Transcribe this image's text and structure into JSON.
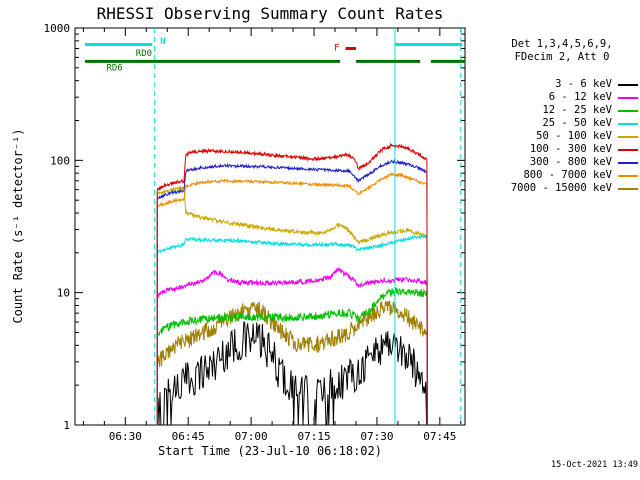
{
  "title": "RHESSI Observing Summary Count Rates",
  "timestamp": "15-Oct-2021 13:49",
  "legend": {
    "header_line1": "Det 1,3,4,5,6,9,",
    "header_line2": "FDecim 2, Att 0",
    "entries": [
      {
        "label": "3 - 6 keV",
        "color": "#000000"
      },
      {
        "label": "6 - 12 keV",
        "color": "#f000f0"
      },
      {
        "label": "12 - 25 keV",
        "color": "#00c000"
      },
      {
        "label": "25 - 50 keV",
        "color": "#00dede"
      },
      {
        "label": "50 - 100 keV",
        "color": "#c8a800"
      },
      {
        "label": "100 - 300 keV",
        "color": "#dc0000"
      },
      {
        "label": "300 - 800 keV",
        "color": "#2020c8"
      },
      {
        "label": "800 - 7000 keV",
        "color": "#f08c00"
      },
      {
        "label": "7000 - 15000 keV",
        "color": "#a08000"
      }
    ]
  },
  "chart_data": {
    "type": "line",
    "title": "RHESSI Observing Summary Count Rates",
    "xlabel": "Start Time (23-Jul-10 06:18:02)",
    "ylabel": "Count Rate (s⁻¹ detector⁻¹)",
    "yscale": "log",
    "ylim": [
      1,
      1000
    ],
    "y_tick_labels": [
      "1",
      "10",
      "100",
      "1000"
    ],
    "t_range": [
      0,
      93
    ],
    "x_major_ticks": [
      {
        "t": 12,
        "label": "06:30"
      },
      {
        "t": 27,
        "label": "06:45"
      },
      {
        "t": 42,
        "label": "07:00"
      },
      {
        "t": 57,
        "label": "07:15"
      },
      {
        "t": 72,
        "label": "07:30"
      },
      {
        "t": 87,
        "label": "07:45"
      }
    ],
    "x_minor_ticks": [
      2,
      7,
      17,
      22,
      32,
      37,
      47,
      52,
      62,
      67,
      77,
      82,
      92
    ],
    "series": [
      {
        "name": "3 - 6 keV",
        "color": "#000000",
        "noise": 0.3,
        "bias": -0.06,
        "step": 0.22,
        "snap_floor": 0.18,
        "points": [
          [
            19.6,
            1.3
          ],
          [
            22,
            1.8
          ],
          [
            25,
            2.1
          ],
          [
            29,
            2.5
          ],
          [
            33,
            3.0
          ],
          [
            37,
            4.0
          ],
          [
            41,
            4.6
          ],
          [
            44,
            4.6
          ],
          [
            47,
            3.4
          ],
          [
            50,
            2.3
          ],
          [
            53,
            1.8
          ],
          [
            57,
            1.7
          ],
          [
            61,
            2.0
          ],
          [
            65,
            2.4
          ],
          [
            68,
            2.8
          ],
          [
            71,
            3.6
          ],
          [
            74,
            4.4
          ],
          [
            76,
            4.4
          ],
          [
            79,
            3.4
          ],
          [
            82,
            2.6
          ],
          [
            84,
            2.1
          ]
        ]
      },
      {
        "name": "6 - 12 keV",
        "color": "#f000f0",
        "noise": 0.035,
        "points": [
          [
            19.6,
            9.5
          ],
          [
            22,
            10.5
          ],
          [
            26,
            11.2
          ],
          [
            30,
            12.2
          ],
          [
            33,
            14.2
          ],
          [
            34.5,
            14.0
          ],
          [
            36,
            12.6
          ],
          [
            40,
            11.9
          ],
          [
            46,
            11.8
          ],
          [
            52,
            12.0
          ],
          [
            58,
            12.3
          ],
          [
            61,
            13.2
          ],
          [
            62.8,
            15.0
          ],
          [
            64.5,
            13.6
          ],
          [
            66.5,
            12.6
          ],
          [
            67.6,
            11.3
          ],
          [
            70,
            11.9
          ],
          [
            74,
            12.4
          ],
          [
            78,
            12.6
          ],
          [
            81,
            12.4
          ],
          [
            84,
            11.9
          ]
        ]
      },
      {
        "name": "12 - 25 keV",
        "color": "#00c000",
        "noise": 0.06,
        "points": [
          [
            19.6,
            4.8
          ],
          [
            22,
            5.5
          ],
          [
            26,
            6.0
          ],
          [
            32,
            6.4
          ],
          [
            40,
            6.5
          ],
          [
            48,
            6.5
          ],
          [
            56,
            6.6
          ],
          [
            62,
            7.0
          ],
          [
            65.5,
            7.0
          ],
          [
            67.6,
            6.3
          ],
          [
            70,
            7.2
          ],
          [
            72.5,
            9.0
          ],
          [
            75,
            10.0
          ],
          [
            78,
            10.3
          ],
          [
            81,
            10.1
          ],
          [
            84,
            9.8
          ]
        ]
      },
      {
        "name": "25 - 50 keV",
        "color": "#00dede",
        "noise": 0.025,
        "points": [
          [
            19.6,
            20
          ],
          [
            23,
            22
          ],
          [
            26,
            23
          ],
          [
            26.4,
            25.5
          ],
          [
            32,
            25
          ],
          [
            40,
            24.5
          ],
          [
            48,
            23.5
          ],
          [
            56,
            23
          ],
          [
            62,
            23.2
          ],
          [
            66,
            22.6
          ],
          [
            67.6,
            21
          ],
          [
            71,
            22
          ],
          [
            75,
            23.5
          ],
          [
            79,
            25.5
          ],
          [
            82,
            26.5
          ],
          [
            84,
            27
          ]
        ]
      },
      {
        "name": "50 - 100 keV",
        "color": "#c8a800",
        "noise": 0.03,
        "points": [
          [
            19.6,
            55
          ],
          [
            23,
            60
          ],
          [
            26,
            62
          ],
          [
            26.4,
            40
          ],
          [
            30,
            37
          ],
          [
            36,
            34
          ],
          [
            44,
            31
          ],
          [
            52,
            29
          ],
          [
            58,
            28.2
          ],
          [
            61,
            29.5
          ],
          [
            62.8,
            32.5
          ],
          [
            65,
            30
          ],
          [
            67.6,
            24
          ],
          [
            71,
            26
          ],
          [
            75,
            28.5
          ],
          [
            79,
            29.5
          ],
          [
            82,
            28
          ],
          [
            84,
            26.5
          ]
        ]
      },
      {
        "name": "100 - 300 keV",
        "color": "#dc0000",
        "noise": 0.025,
        "points": [
          [
            19.6,
            60
          ],
          [
            22,
            66
          ],
          [
            26,
            70
          ],
          [
            26.4,
            110
          ],
          [
            28,
            116
          ],
          [
            32,
            118
          ],
          [
            38,
            116
          ],
          [
            44,
            112
          ],
          [
            50,
            107
          ],
          [
            56,
            103
          ],
          [
            60,
            103
          ],
          [
            62.8,
            107
          ],
          [
            64.5,
            110
          ],
          [
            66.5,
            105
          ],
          [
            67.6,
            86
          ],
          [
            70,
            96
          ],
          [
            73,
            119
          ],
          [
            75.5,
            130
          ],
          [
            78,
            127
          ],
          [
            80.5,
            118
          ],
          [
            82.5,
            108
          ],
          [
            84,
            100
          ]
        ]
      },
      {
        "name": "300 - 800 keV",
        "color": "#2020c8",
        "noise": 0.02,
        "points": [
          [
            19.6,
            52
          ],
          [
            23,
            57
          ],
          [
            26,
            59
          ],
          [
            26.4,
            83
          ],
          [
            30,
            88
          ],
          [
            36,
            91
          ],
          [
            44,
            90
          ],
          [
            52,
            87
          ],
          [
            58,
            85
          ],
          [
            62,
            84
          ],
          [
            65.5,
            83
          ],
          [
            67.6,
            70
          ],
          [
            70,
            78
          ],
          [
            73,
            91
          ],
          [
            75.5,
            98
          ],
          [
            78,
            96
          ],
          [
            81,
            90
          ],
          [
            84,
            82
          ]
        ]
      },
      {
        "name": "800 - 7000 keV",
        "color": "#f08c00",
        "noise": 0.02,
        "points": [
          [
            19.6,
            45
          ],
          [
            23,
            49
          ],
          [
            26,
            51
          ],
          [
            26.4,
            64
          ],
          [
            30,
            68
          ],
          [
            36,
            70
          ],
          [
            44,
            69
          ],
          [
            52,
            67
          ],
          [
            58,
            65.5
          ],
          [
            62,
            65
          ],
          [
            65.5,
            64
          ],
          [
            67.6,
            56
          ],
          [
            70,
            62
          ],
          [
            73,
            72
          ],
          [
            75.5,
            78
          ],
          [
            78,
            77
          ],
          [
            81,
            71
          ],
          [
            84,
            65
          ]
        ]
      },
      {
        "name": "7000 - 15000 keV",
        "color": "#a08000",
        "noise": 0.13,
        "points": [
          [
            19.6,
            2.9
          ],
          [
            22,
            3.6
          ],
          [
            25,
            4.1
          ],
          [
            29,
            4.7
          ],
          [
            33,
            5.4
          ],
          [
            37,
            6.6
          ],
          [
            41,
            7.6
          ],
          [
            44,
            7.4
          ],
          [
            47,
            6.0
          ],
          [
            50,
            4.8
          ],
          [
            53,
            4.1
          ],
          [
            57,
            4.0
          ],
          [
            61,
            4.4
          ],
          [
            65,
            5.0
          ],
          [
            68,
            5.8
          ],
          [
            71,
            6.8
          ],
          [
            74,
            7.8
          ],
          [
            76,
            7.8
          ],
          [
            79,
            6.6
          ],
          [
            82,
            5.5
          ],
          [
            84,
            4.7
          ]
        ]
      }
    ],
    "events": {
      "bars": [
        {
          "name": "night-bar-1",
          "color": "#00dede",
          "width": 3,
          "t0": 2.4,
          "t1": 18.4,
          "v": 750
        },
        {
          "name": "night-bar-2",
          "color": "#00dede",
          "width": 3,
          "t0": 76.3,
          "t1": 92.3,
          "v": 750
        },
        {
          "name": "rd-bar-1",
          "color": "#007000",
          "width": 3,
          "t0": 2.4,
          "t1": 63.2,
          "v": 560
        },
        {
          "name": "rd-bar-2",
          "color": "#007000",
          "width": 3,
          "t0": 67.0,
          "t1": 82.3,
          "v": 560
        },
        {
          "name": "rd-bar-3",
          "color": "#007000",
          "width": 3,
          "t0": 84.9,
          "t1": 93.0,
          "v": 560
        },
        {
          "name": "flare-bar",
          "color": "#dc0000",
          "width": 3,
          "t0": 64.5,
          "t1": 67.0,
          "v": 700
        }
      ],
      "labels": [
        {
          "text": "N",
          "color": "#00c8c8",
          "t": 20.3,
          "v": 800
        },
        {
          "text": "RD0",
          "color": "#007000",
          "t": 14.5,
          "v": 645
        },
        {
          "text": "RD6",
          "color": "#007000",
          "t": 7.5,
          "v": 505
        },
        {
          "text": "F",
          "color": "#dc0000",
          "t": 61.8,
          "v": 715
        }
      ],
      "vlines": [
        {
          "t": 19.0,
          "style": "dashed",
          "color": "#00dede"
        },
        {
          "t": 76.3,
          "style": "solid",
          "color": "#00dede"
        },
        {
          "t": 92.0,
          "style": "dashed",
          "color": "#00dede"
        }
      ]
    }
  }
}
